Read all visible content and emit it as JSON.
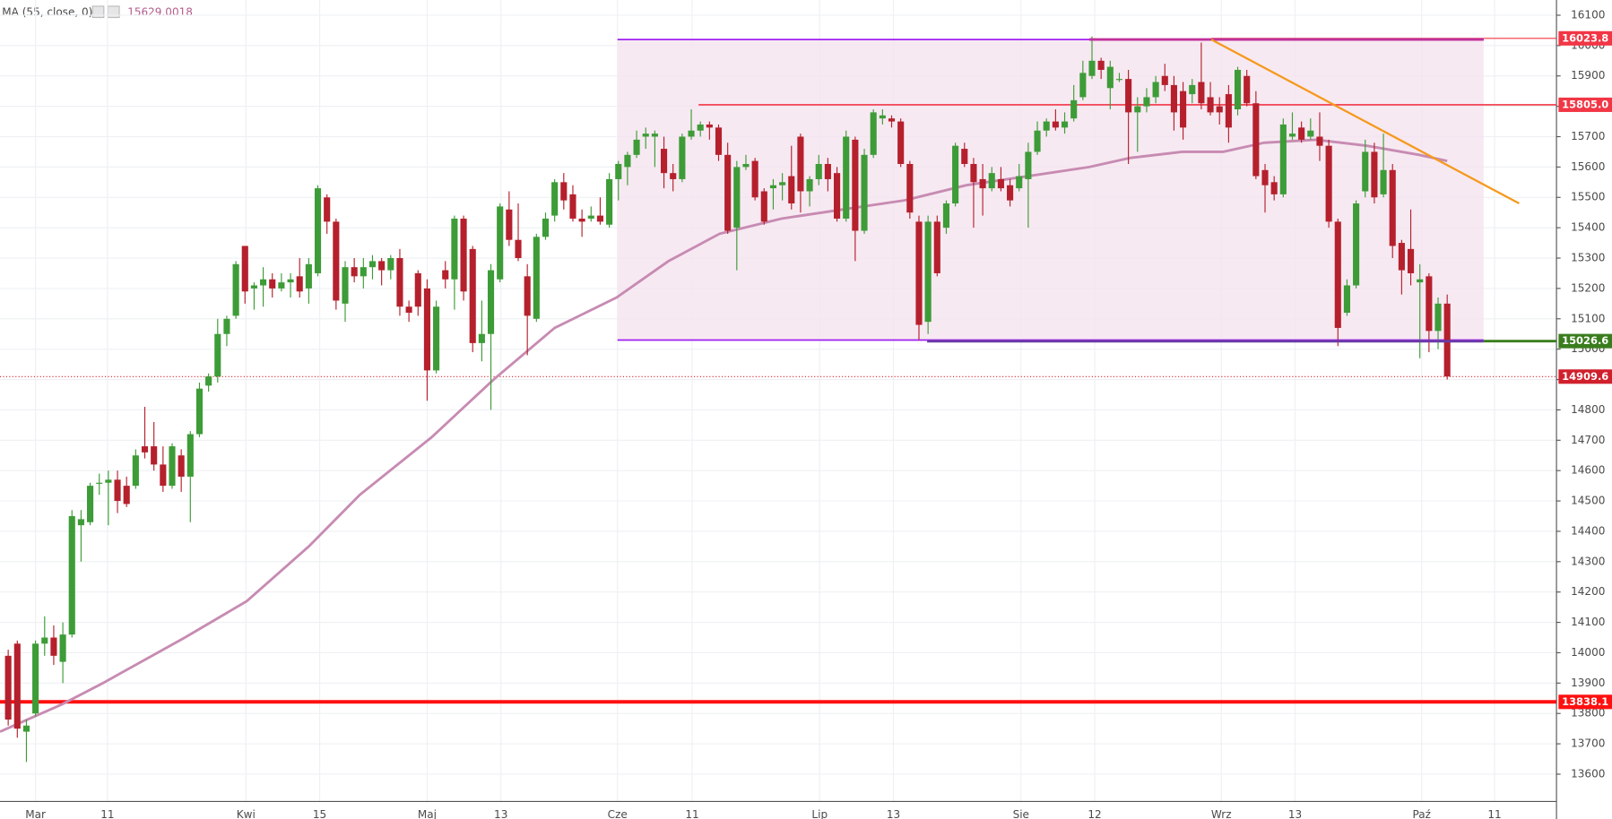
{
  "chart_data": {
    "type": "candlestick",
    "indicator": "MA (55, close, 0)",
    "indicator_value": "15629.0018",
    "up_color": "#3d9c37",
    "down_color": "#b5202c",
    "xlim": [
      -0.9,
      170.0
    ],
    "ylim": [
      13510,
      16150
    ],
    "xticks": [
      {
        "value": 3.0,
        "label": "Mar"
      },
      {
        "value": 10.9,
        "label": "11"
      },
      {
        "value": 26.1,
        "label": "Kwi"
      },
      {
        "value": 34.2,
        "label": "15"
      },
      {
        "value": 46.0,
        "label": "Maj"
      },
      {
        "value": 54.1,
        "label": "13"
      },
      {
        "value": 66.9,
        "label": "Cze"
      },
      {
        "value": 75.1,
        "label": "11"
      },
      {
        "value": 89.1,
        "label": "Lip"
      },
      {
        "value": 97.2,
        "label": "13"
      },
      {
        "value": 111.2,
        "label": "Sie"
      },
      {
        "value": 119.3,
        "label": "12"
      },
      {
        "value": 133.2,
        "label": "Wrz"
      },
      {
        "value": 141.3,
        "label": "13"
      },
      {
        "value": 155.2,
        "label": "Paź"
      },
      {
        "value": 163.2,
        "label": "11"
      }
    ],
    "yticks": [
      13600,
      13700,
      13800,
      13900,
      14000,
      14100,
      14200,
      14300,
      14400,
      14500,
      14600,
      14700,
      14800,
      14900,
      15000,
      15100,
      15200,
      15300,
      15400,
      15500,
      15600,
      15700,
      15800,
      15900,
      16000,
      16100
    ],
    "grid": true,
    "candles": [
      [
        13990,
        14010,
        13760,
        13780
      ],
      [
        14030,
        14040,
        13720,
        13750
      ],
      [
        13740,
        13780,
        13640,
        13760
      ],
      [
        13800,
        14040,
        13790,
        14030
      ],
      [
        14030,
        14120,
        13990,
        14050
      ],
      [
        14050,
        14090,
        13960,
        13990
      ],
      [
        13970,
        14100,
        13900,
        14060
      ],
      [
        14060,
        14470,
        14050,
        14450
      ],
      [
        14420,
        14470,
        14300,
        14440
      ],
      [
        14430,
        14560,
        14420,
        14550
      ],
      [
        14560,
        14590,
        14520,
        14560
      ],
      [
        14560,
        14600,
        14420,
        14570
      ],
      [
        14570,
        14600,
        14460,
        14500
      ],
      [
        14550,
        14580,
        14480,
        14490
      ],
      [
        14550,
        14670,
        14540,
        14650
      ],
      [
        14680,
        14810,
        14640,
        14660
      ],
      [
        14680,
        14760,
        14600,
        14620
      ],
      [
        14620,
        14680,
        14530,
        14550
      ],
      [
        14550,
        14690,
        14540,
        14680
      ],
      [
        14650,
        14670,
        14530,
        14580
      ],
      [
        14580,
        14730,
        14430,
        14720
      ],
      [
        14720,
        14890,
        14710,
        14870
      ],
      [
        14880,
        14920,
        14860,
        14910
      ],
      [
        14910,
        15100,
        14890,
        15050
      ],
      [
        15050,
        15110,
        15010,
        15100
      ],
      [
        15110,
        15290,
        15100,
        15280
      ],
      [
        15340,
        15340,
        15150,
        15190
      ],
      [
        15200,
        15220,
        15130,
        15210
      ],
      [
        15210,
        15270,
        15140,
        15230
      ],
      [
        15230,
        15250,
        15170,
        15200
      ],
      [
        15200,
        15250,
        15190,
        15220
      ],
      [
        15220,
        15250,
        15170,
        15230
      ],
      [
        15240,
        15300,
        15170,
        15190
      ],
      [
        15200,
        15300,
        15150,
        15280
      ],
      [
        15250,
        15540,
        15240,
        15530
      ],
      [
        15500,
        15510,
        15380,
        15420
      ],
      [
        15420,
        15430,
        15130,
        15160
      ],
      [
        15150,
        15290,
        15090,
        15270
      ],
      [
        15270,
        15300,
        15220,
        15240
      ],
      [
        15240,
        15300,
        15200,
        15270
      ],
      [
        15270,
        15310,
        15230,
        15290
      ],
      [
        15290,
        15300,
        15210,
        15260
      ],
      [
        15260,
        15310,
        15230,
        15300
      ],
      [
        15300,
        15330,
        15110,
        15140
      ],
      [
        15140,
        15160,
        15090,
        15120
      ],
      [
        15250,
        15260,
        15110,
        15140
      ],
      [
        15200,
        15230,
        14830,
        14930
      ],
      [
        14930,
        15160,
        14920,
        15140
      ],
      [
        15260,
        15290,
        15200,
        15230
      ],
      [
        15230,
        15440,
        15130,
        15430
      ],
      [
        15430,
        15440,
        15160,
        15190
      ],
      [
        15330,
        15340,
        14990,
        15020
      ],
      [
        15020,
        15160,
        14960,
        15050
      ],
      [
        15050,
        15280,
        14800,
        15260
      ],
      [
        15230,
        15480,
        15220,
        15470
      ],
      [
        15460,
        15520,
        15340,
        15360
      ],
      [
        15360,
        15480,
        15290,
        15300
      ],
      [
        15240,
        15280,
        14980,
        15110
      ],
      [
        15100,
        15380,
        15090,
        15370
      ],
      [
        15370,
        15450,
        15360,
        15430
      ],
      [
        15440,
        15560,
        15420,
        15550
      ],
      [
        15550,
        15580,
        15460,
        15490
      ],
      [
        15510,
        15540,
        15420,
        15430
      ],
      [
        15430,
        15460,
        15370,
        15420
      ],
      [
        15430,
        15470,
        15420,
        15440
      ],
      [
        15440,
        15500,
        15410,
        15420
      ],
      [
        15410,
        15580,
        15400,
        15560
      ],
      [
        15560,
        15620,
        15490,
        15610
      ],
      [
        15600,
        15650,
        15540,
        15640
      ],
      [
        15640,
        15720,
        15630,
        15690
      ],
      [
        15700,
        15730,
        15660,
        15710
      ],
      [
        15700,
        15720,
        15600,
        15710
      ],
      [
        15660,
        15700,
        15530,
        15580
      ],
      [
        15580,
        15610,
        15520,
        15560
      ],
      [
        15560,
        15710,
        15550,
        15700
      ],
      [
        15700,
        15790,
        15690,
        15720
      ],
      [
        15720,
        15750,
        15700,
        15740
      ],
      [
        15740,
        15750,
        15690,
        15730
      ],
      [
        15730,
        15740,
        15620,
        15640
      ],
      [
        15640,
        15680,
        15380,
        15390
      ],
      [
        15400,
        15620,
        15260,
        15600
      ],
      [
        15600,
        15640,
        15590,
        15610
      ],
      [
        15620,
        15630,
        15490,
        15500
      ],
      [
        15520,
        15530,
        15410,
        15420
      ],
      [
        15530,
        15560,
        15460,
        15540
      ],
      [
        15540,
        15580,
        15490,
        15550
      ],
      [
        15570,
        15670,
        15460,
        15480
      ],
      [
        15700,
        15710,
        15450,
        15520
      ],
      [
        15520,
        15570,
        15470,
        15560
      ],
      [
        15560,
        15640,
        15540,
        15610
      ],
      [
        15610,
        15630,
        15520,
        15560
      ],
      [
        15580,
        15600,
        15420,
        15430
      ],
      [
        15430,
        15720,
        15420,
        15700
      ],
      [
        15690,
        15700,
        15290,
        15390
      ],
      [
        15390,
        15660,
        15380,
        15640
      ],
      [
        15640,
        15790,
        15630,
        15780
      ],
      [
        15760,
        15790,
        15740,
        15770
      ],
      [
        15760,
        15770,
        15730,
        15750
      ],
      [
        15750,
        15760,
        15600,
        15610
      ],
      [
        15610,
        15620,
        15430,
        15450
      ],
      [
        15420,
        15440,
        15030,
        15080
      ],
      [
        15090,
        15440,
        15050,
        15420
      ],
      [
        15420,
        15440,
        15240,
        15250
      ],
      [
        15400,
        15490,
        15380,
        15480
      ],
      [
        15480,
        15680,
        15470,
        15670
      ],
      [
        15660,
        15680,
        15600,
        15610
      ],
      [
        15610,
        15630,
        15400,
        15550
      ],
      [
        15560,
        15610,
        15440,
        15530
      ],
      [
        15530,
        15600,
        15520,
        15580
      ],
      [
        15560,
        15600,
        15520,
        15530
      ],
      [
        15540,
        15560,
        15470,
        15490
      ],
      [
        15530,
        15610,
        15520,
        15570
      ],
      [
        15560,
        15680,
        15400,
        15650
      ],
      [
        15650,
        15750,
        15640,
        15720
      ],
      [
        15720,
        15760,
        15700,
        15750
      ],
      [
        15750,
        15790,
        15720,
        15730
      ],
      [
        15730,
        15780,
        15710,
        15750
      ],
      [
        15760,
        15870,
        15750,
        15820
      ],
      [
        15830,
        15950,
        15820,
        15910
      ],
      [
        15900,
        16030,
        15890,
        15950
      ],
      [
        15950,
        15960,
        15890,
        15920
      ],
      [
        15860,
        15950,
        15790,
        15930
      ],
      [
        15890,
        15910,
        15880,
        15890
      ],
      [
        15890,
        15920,
        15610,
        15780
      ],
      [
        15780,
        15830,
        15650,
        15800
      ],
      [
        15800,
        15860,
        15780,
        15830
      ],
      [
        15830,
        15900,
        15810,
        15880
      ],
      [
        15900,
        15940,
        15850,
        15870
      ],
      [
        15870,
        15900,
        15720,
        15780
      ],
      [
        15850,
        15880,
        15690,
        15730
      ],
      [
        15840,
        15890,
        15810,
        15870
      ],
      [
        15880,
        16010,
        15790,
        15810
      ],
      [
        15830,
        15880,
        15770,
        15780
      ],
      [
        15800,
        15830,
        15740,
        15780
      ],
      [
        15840,
        15870,
        15680,
        15730
      ],
      [
        15790,
        15930,
        15770,
        15920
      ],
      [
        15900,
        15920,
        15800,
        15810
      ],
      [
        15810,
        15850,
        15560,
        15570
      ],
      [
        15590,
        15610,
        15450,
        15540
      ],
      [
        15550,
        15570,
        15490,
        15510
      ],
      [
        15510,
        15760,
        15500,
        15740
      ],
      [
        15700,
        15780,
        15690,
        15710
      ],
      [
        15730,
        15750,
        15680,
        15690
      ],
      [
        15700,
        15760,
        15690,
        15720
      ],
      [
        15700,
        15780,
        15620,
        15670
      ],
      [
        15670,
        15690,
        15400,
        15420
      ],
      [
        15420,
        15430,
        15010,
        15070
      ],
      [
        15120,
        15230,
        15110,
        15210
      ],
      [
        15210,
        15490,
        15200,
        15480
      ],
      [
        15520,
        15690,
        15500,
        15650
      ],
      [
        15650,
        15680,
        15480,
        15500
      ],
      [
        15510,
        15710,
        15500,
        15590
      ],
      [
        15590,
        15610,
        15300,
        15340
      ],
      [
        15350,
        15360,
        15180,
        15260
      ],
      [
        15330,
        15460,
        15210,
        15250
      ],
      [
        15220,
        15280,
        14970,
        15230
      ],
      [
        15240,
        15250,
        14990,
        15060
      ],
      [
        15060,
        15170,
        15000,
        15150
      ],
      [
        15150,
        15180,
        14900,
        14910
      ]
    ],
    "ma": {
      "color": "#c78bb2",
      "x": [
        -0.9,
        5.9,
        10.4,
        19.4,
        26.2,
        33.0,
        38.6,
        46.5,
        53.3,
        60.0,
        66.8,
        72.5,
        78.1,
        84.9,
        91.6,
        98.4,
        105.2,
        112.0,
        118.7,
        123.2,
        128.9,
        133.4,
        137.9,
        143.6,
        149.2,
        154.9,
        158.0
      ],
      "values": [
        13740,
        13830,
        13900,
        14050,
        14170,
        14350,
        14520,
        14710,
        14900,
        15070,
        15170,
        15290,
        15380,
        15430,
        15460,
        15490,
        15540,
        15570,
        15600,
        15630,
        15650,
        15650,
        15680,
        15690,
        15670,
        15640,
        15620
      ]
    },
    "box": {
      "x": [
        66.9,
        162.0
      ],
      "values": [
        15030,
        16020
      ],
      "fill": "#f5e4ef",
      "edge": "#a020f0"
    },
    "segments": [
      {
        "x": [
          118.7,
          162.0
        ],
        "values": [
          16020,
          16020
        ],
        "color": "#c0309a",
        "width": 2.5
      },
      {
        "x": [
          100.9,
          162.0
        ],
        "values": [
          15026,
          15026
        ],
        "color": "#6a3aa8",
        "width": 2.5
      },
      {
        "x": [
          132.1,
          165.9
        ],
        "values": [
          16020,
          15480
        ],
        "color": "#f59a1e",
        "width": 2
      }
    ],
    "levels": [
      {
        "value": 16023.8,
        "from": 132.1,
        "color": "#f23645",
        "width": 1
      },
      {
        "value": 15805,
        "label": "15805.0",
        "from": 75.8,
        "color": "#f23645",
        "width": 1.5
      },
      {
        "value": 15026.6,
        "from": 162.0,
        "color": "#3a7d1e",
        "width": 2.5
      },
      {
        "value": 14909.6,
        "from": -0.9,
        "color": "#d0202c",
        "width": 1,
        "dash": "1,2"
      },
      {
        "value": 13838.1,
        "from": -0.9,
        "color": "#ff1010",
        "width": 3.5
      }
    ]
  }
}
